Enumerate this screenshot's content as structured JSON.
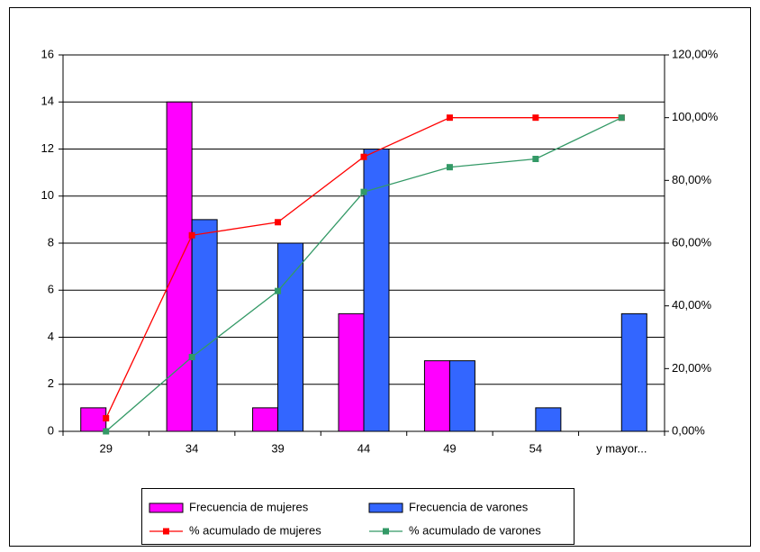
{
  "chart_data": {
    "type": "combo",
    "categories": [
      "29",
      "34",
      "39",
      "44",
      "49",
      "54",
      "y mayor..."
    ],
    "series": [
      {
        "name": "Frecuencia de mujeres",
        "type": "bar",
        "color": "#ff00ff",
        "values": [
          1,
          14,
          1,
          5,
          3,
          0,
          0
        ]
      },
      {
        "name": "Frecuencia de varones",
        "type": "bar",
        "color": "#3366ff",
        "values": [
          0,
          9,
          8,
          12,
          3,
          1,
          5
        ]
      },
      {
        "name": "% acumulado de mujeres",
        "type": "line",
        "axis": "y2",
        "color": "#ff0000",
        "values": [
          4.17,
          62.5,
          66.67,
          87.5,
          100,
          100,
          100
        ]
      },
      {
        "name": "% acumulado de varones",
        "type": "line",
        "axis": "y2",
        "color": "#339966",
        "values": [
          0,
          23.68,
          44.74,
          76.32,
          84.21,
          86.84,
          100
        ]
      }
    ],
    "ylim": [
      0,
      16
    ],
    "yticks": [
      0,
      2,
      4,
      6,
      8,
      10,
      12,
      14,
      16
    ],
    "y2lim": [
      0,
      120
    ],
    "y2ticks": [
      {
        "value": 0,
        "label": "0,00%"
      },
      {
        "value": 20,
        "label": "20,00%"
      },
      {
        "value": 40,
        "label": "40,00%"
      },
      {
        "value": 60,
        "label": "60,00%"
      },
      {
        "value": 80,
        "label": "80,00%"
      },
      {
        "value": 100,
        "label": "100,00%"
      },
      {
        "value": 120,
        "label": "120,00%"
      }
    ],
    "grid": true,
    "legend": "bottom"
  }
}
